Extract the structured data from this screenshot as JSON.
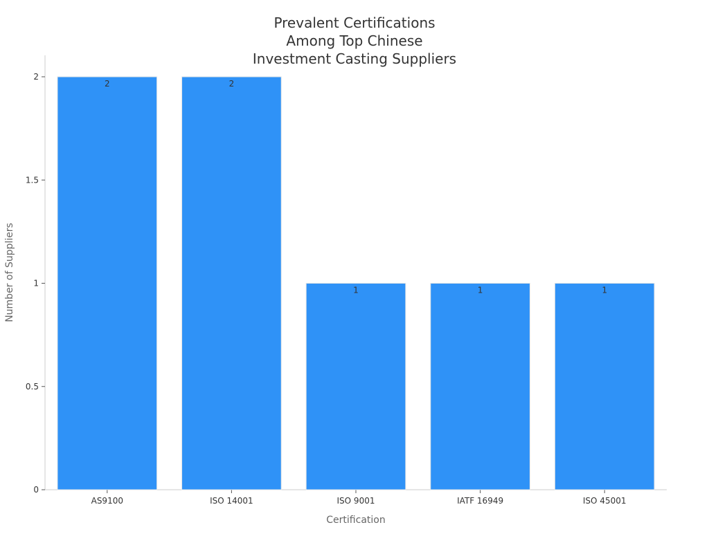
{
  "chart_data": {
    "type": "bar",
    "title_lines": [
      "Prevalent Certifications",
      "Among Top Chinese",
      "Investment Casting Suppliers"
    ],
    "xlabel": "Certification",
    "ylabel": "Number of Suppliers",
    "categories": [
      "AS9100",
      "ISO 14001",
      "ISO 9001",
      "IATF 16949",
      "ISO 45001"
    ],
    "values": [
      2,
      2,
      1,
      1,
      1
    ],
    "value_labels": [
      "2",
      "2",
      "1",
      "1",
      "1"
    ],
    "ylim": [
      0,
      2
    ],
    "yticks": [
      0,
      0.5,
      1,
      1.5,
      2
    ],
    "ytick_labels": [
      "0",
      "0.5",
      "1",
      "1.5",
      "2"
    ],
    "grid": false,
    "legend": "none",
    "colors": {
      "bar": "#2f92f7",
      "bar_edge": "#e6e6e6",
      "axis": "#cccccc",
      "title": "#333333",
      "axis_label": "#666666",
      "tick_label": "#333333"
    }
  }
}
